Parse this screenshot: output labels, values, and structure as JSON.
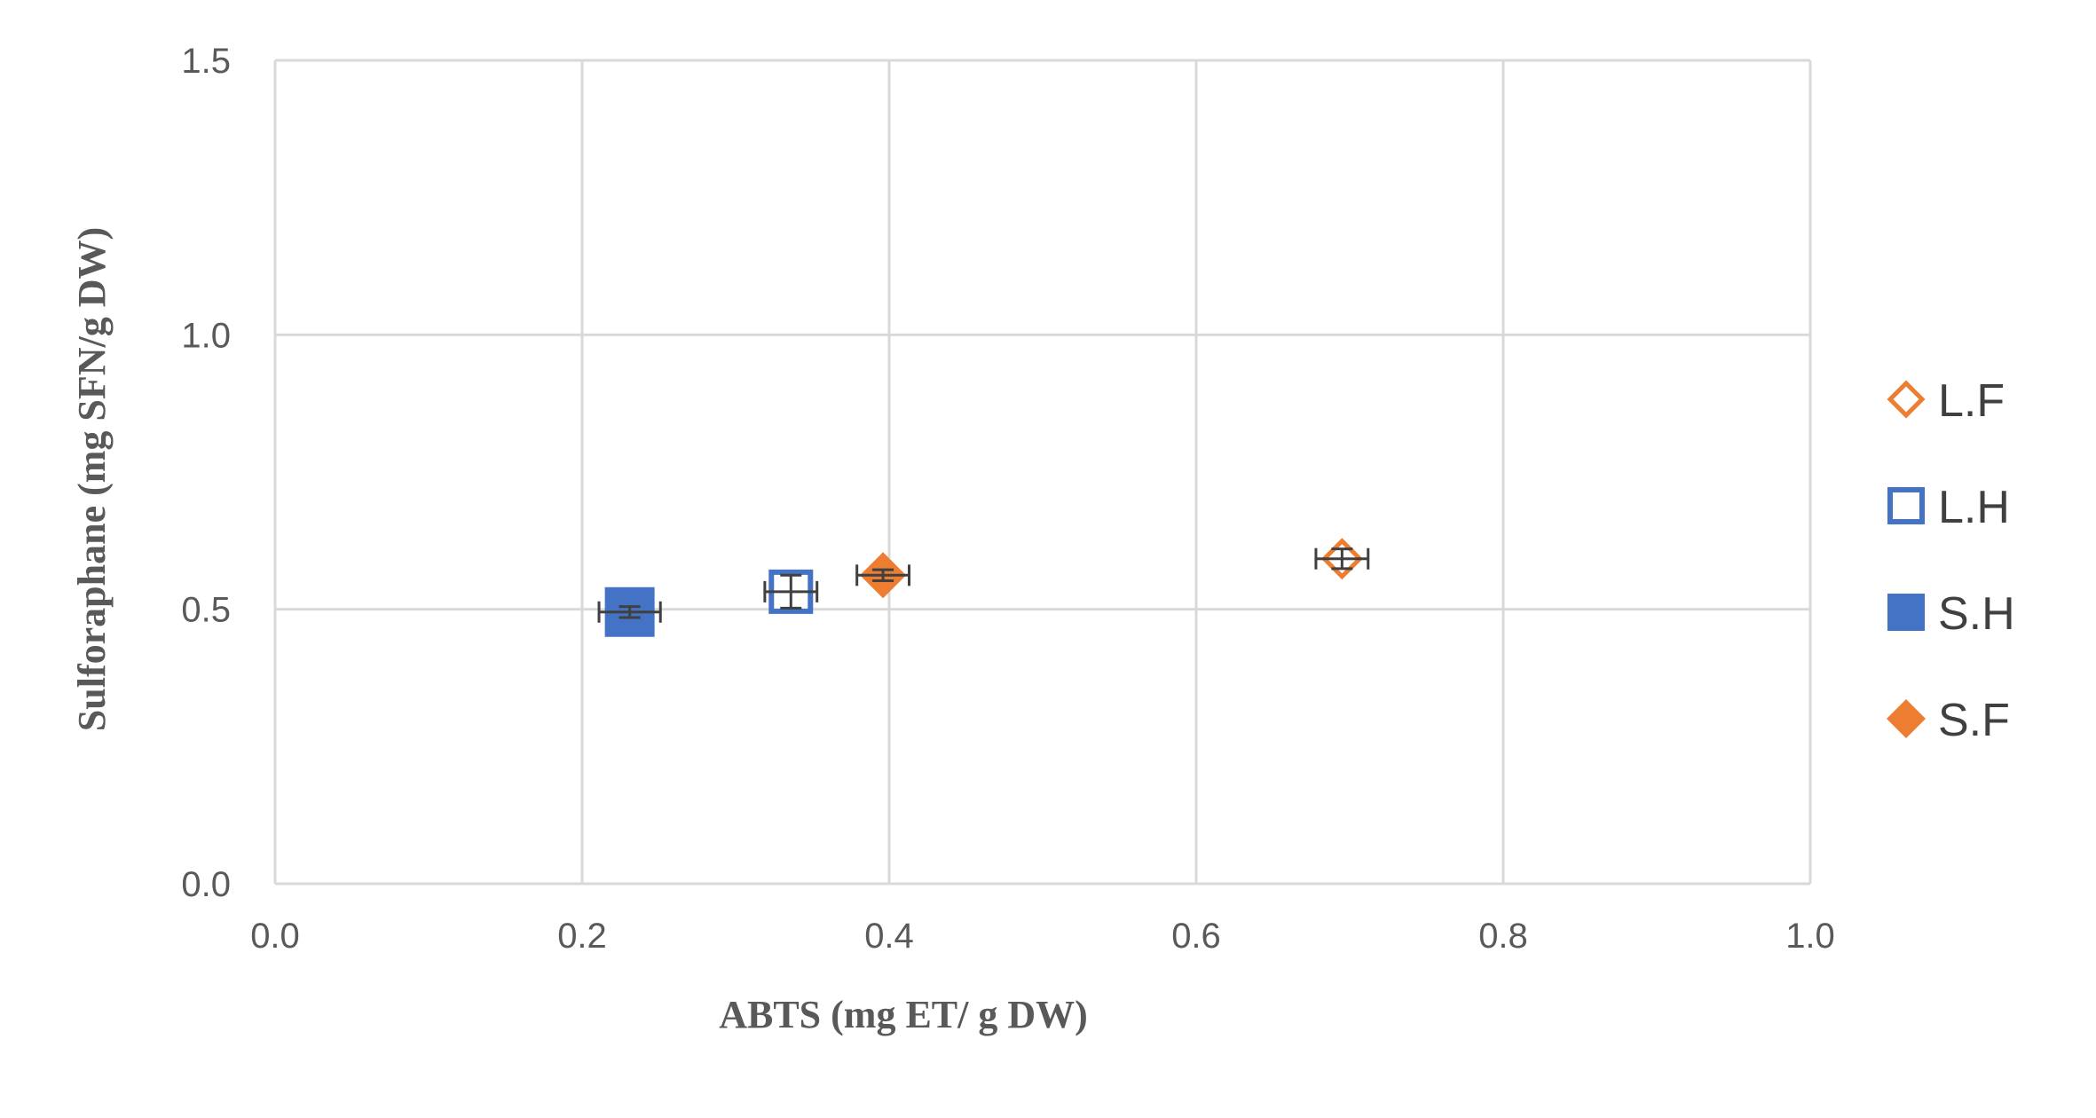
{
  "chart_data": {
    "type": "scatter",
    "title": "",
    "xlabel": "ABTS (mg ET/ g DW)",
    "ylabel": "Sulforaphane (mg SFN/g DW)",
    "xlim": [
      0.0,
      1.0
    ],
    "ylim": [
      0.0,
      1.5
    ],
    "x_ticks": [
      "0.0",
      "0.2",
      "0.4",
      "0.6",
      "0.8",
      "1.0"
    ],
    "y_ticks": [
      "0.0",
      "0.5",
      "1.0",
      "1.5"
    ],
    "grid": true,
    "legend_position": "right",
    "series": [
      {
        "name": "L.F",
        "marker": "diamond-open",
        "color": "#ED7D31",
        "x": 0.695,
        "y": 0.592,
        "x_err": 0.017,
        "y_err": 0.018
      },
      {
        "name": "L.H",
        "marker": "square-open",
        "color": "#4472C4",
        "x": 0.336,
        "y": 0.532,
        "x_err": 0.017,
        "y_err": 0.03
      },
      {
        "name": "S.H",
        "marker": "square-filled",
        "color": "#4472C4",
        "x": 0.231,
        "y": 0.495,
        "x_err": 0.02,
        "y_err": 0.01
      },
      {
        "name": "S.F",
        "marker": "diamond-filled",
        "color": "#ED7D31",
        "x": 0.396,
        "y": 0.562,
        "x_err": 0.017,
        "y_err": 0.01
      }
    ]
  }
}
